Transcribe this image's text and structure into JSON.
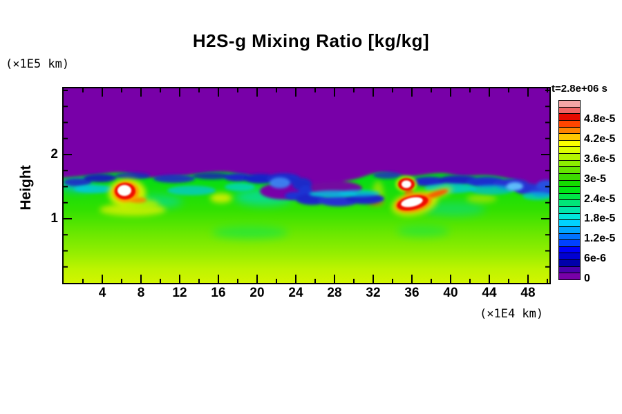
{
  "title": "H2S-g Mixing Ratio [kg/kg]",
  "axes": {
    "y_label": "Height",
    "y_unit": "(×1E5 km)",
    "x_unit": "(×1E4 km)"
  },
  "colorbar": {
    "time_label": "t=2.8e+06 s",
    "tick_labels": [
      "4.8e-5",
      "4.2e-5",
      "3.6e-5",
      "3e-5",
      "2.4e-5",
      "1.8e-5",
      "1.2e-5",
      "6e-6",
      "0"
    ],
    "segment_colors_bottom_to_top": [
      "#7800A8",
      "#4B00AD",
      "#0000AA",
      "#0000D2",
      "#0000FA",
      "#0041FF",
      "#0073FF",
      "#00A5FF",
      "#00D2FF",
      "#00E6DC",
      "#00E6AA",
      "#00E678",
      "#00E646",
      "#00E614",
      "#14DC00",
      "#3CDC00",
      "#64E600",
      "#8CEE00",
      "#B4F600",
      "#DCFF00",
      "#FAFF00",
      "#FFC800",
      "#FF8200",
      "#FF4600",
      "#E60A00",
      "#F06464",
      "#F5A5A5"
    ]
  },
  "chart_data": {
    "type": "heatmap",
    "title": "H2S-g Mixing Ratio [kg/kg]",
    "time_annotation": "t=2.8e+06 s",
    "y_axis_label": "Height",
    "y_axis_unit": "(×1E5 km)",
    "x_axis_unit": "(×1E4 km)",
    "xlim": [
      0,
      50.2
    ],
    "ylim": [
      0,
      3.03
    ],
    "x_ticks": [
      4,
      8,
      12,
      16,
      20,
      24,
      28,
      32,
      36,
      40,
      44,
      48
    ],
    "x_minor_tick_step": 2,
    "y_ticks": [
      1,
      2
    ],
    "y_minor_tick_step": 0.25,
    "grid": false,
    "legend_position": "right-colorbar",
    "colorbar_scale": {
      "min": 0,
      "max": 5.4e-05,
      "step_per_segment": 2e-06,
      "labeled_levels": [
        0,
        6e-06,
        1.2e-05,
        1.8e-05,
        2.4e-05,
        3e-05,
        3.6e-05,
        4.2e-05,
        4.8e-05
      ]
    },
    "field_summary": {
      "upper_region": {
        "height_range_1e5km": [
          1.55,
          3.03
        ],
        "value_kgkg": 0,
        "color": "purple"
      },
      "interface": {
        "height_1e5km": 1.5,
        "description": "turbulent wavy boundary with dark-blue filaments, Kelvin-Helmholtz-like curls, a blue vortex core near x=22, cyan fringes below the purple region"
      },
      "lower_region": {
        "height_range_1e5km": [
          0,
          1.45
        ],
        "value_range_kgkg": [
          2.4e-05,
          3.2e-05
        ],
        "description": "bright green mixing region with teal patches and yellow streaks, grading to yellow-green (~3.6e-5) at the bottom boundary"
      },
      "hotspots": [
        {
          "x_1e4km": 6.3,
          "height_1e5km": 1.44,
          "peak_value": "> 5.2e-5",
          "description": "white core with red ring and yellow halo"
        },
        {
          "x_1e4km": 35.4,
          "height_1e5km": 1.53,
          "peak_value": "> 5.2e-5",
          "description": "small white core with red ring"
        },
        {
          "x_1e4km": 36.1,
          "height_1e5km": 1.23,
          "peak_value": "> 5.2e-5",
          "description": "large white core with red/orange ring, yellow halo and orange streak extending right"
        }
      ]
    }
  }
}
